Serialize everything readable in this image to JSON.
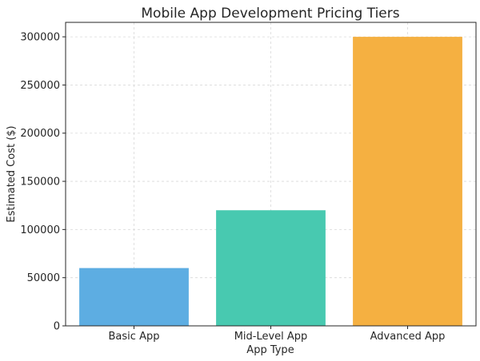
{
  "chart_data": {
    "type": "bar",
    "title": "Mobile App Development Pricing Tiers",
    "xlabel": "App Type",
    "ylabel": "Estimated Cost ($)",
    "categories": [
      "Basic App",
      "Mid-Level App",
      "Advanced App"
    ],
    "values": [
      60000,
      120000,
      300000
    ],
    "colors": [
      "#5DADE2",
      "#48C9B0",
      "#F5B041"
    ],
    "ylim": [
      0,
      315000
    ],
    "yticks": [
      0,
      50000,
      100000,
      150000,
      200000,
      250000,
      300000
    ],
    "grid": true,
    "legend": "none"
  }
}
